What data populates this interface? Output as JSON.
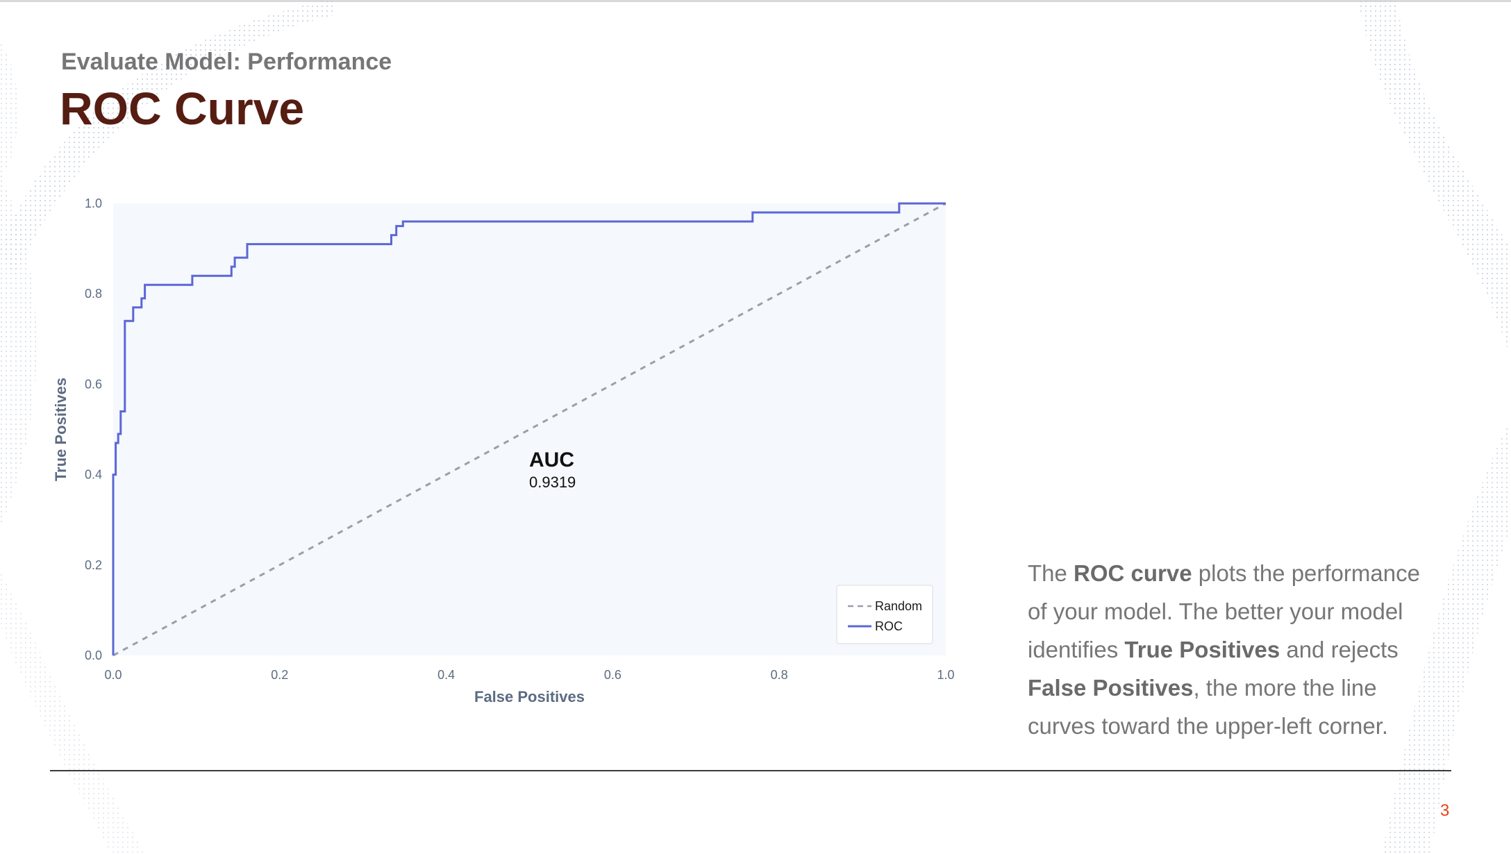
{
  "slide": {
    "subtitle": "Evaluate Model: Performance",
    "title": "ROC Curve",
    "page_number": "3"
  },
  "description": {
    "t1": "The ",
    "b1": "ROC curve",
    "t2": " plots the performance of your model. The better your model identifies ",
    "b2": "True Positives",
    "t3": " and rejects ",
    "b3": "False Positives",
    "t4": ", the more the line curves toward the upper-left corner."
  },
  "annotation": {
    "label": "AUC",
    "value": "0.9319"
  },
  "colors": {
    "roc_line": "#5b67d6",
    "random_line": "#9aa0a8",
    "plot_background": "#f5f8fd",
    "title": "#561d12",
    "page_number": "#e8431a"
  },
  "chart_data": {
    "type": "line",
    "xlabel": "False Positives",
    "ylabel": "True Positives",
    "xlim": [
      0,
      1
    ],
    "ylim": [
      0,
      1
    ],
    "x_ticks": [
      "0.0",
      "0.2",
      "0.4",
      "0.6",
      "0.8",
      "1.0"
    ],
    "y_ticks": [
      "0.0",
      "0.2",
      "0.4",
      "0.6",
      "0.8",
      "1.0"
    ],
    "grid": false,
    "legend_position": "bottom-right",
    "series": [
      {
        "name": "Random",
        "style": "dashed",
        "x": [
          0,
          1
        ],
        "y": [
          0,
          1
        ]
      },
      {
        "name": "ROC",
        "style": "solid",
        "x": [
          0,
          0,
          0.003,
          0.003,
          0.006,
          0.006,
          0.009,
          0.009,
          0.014,
          0.014,
          0.024,
          0.024,
          0.034,
          0.034,
          0.038,
          0.038,
          0.095,
          0.095,
          0.142,
          0.142,
          0.146,
          0.146,
          0.161,
          0.161,
          0.334,
          0.334,
          0.34,
          0.34,
          0.348,
          0.348,
          0.768,
          0.768,
          0.944,
          0.944,
          1.0
        ],
        "y": [
          0,
          0.4,
          0.4,
          0.47,
          0.47,
          0.49,
          0.49,
          0.54,
          0.54,
          0.74,
          0.74,
          0.77,
          0.77,
          0.79,
          0.79,
          0.82,
          0.82,
          0.84,
          0.84,
          0.86,
          0.86,
          0.88,
          0.88,
          0.91,
          0.91,
          0.93,
          0.93,
          0.95,
          0.95,
          0.96,
          0.96,
          0.98,
          0.98,
          1.0,
          1.0
        ]
      }
    ],
    "annotation": {
      "label": "AUC",
      "value": "0.9319"
    }
  }
}
